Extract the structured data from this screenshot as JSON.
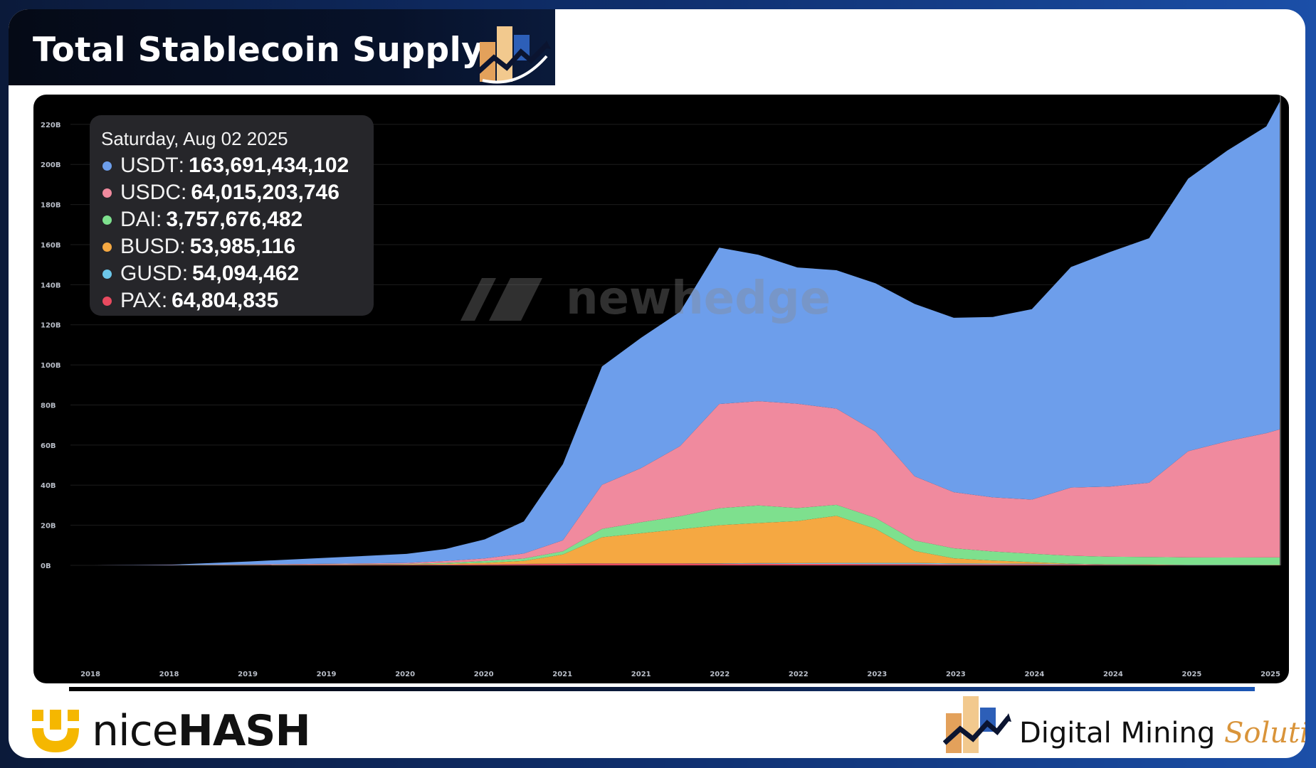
{
  "title": "Total Stablecoin Supply",
  "watermark": "newhedge",
  "tooltip": {
    "date": "Saturday, Aug 02 2025",
    "rows": [
      {
        "name": "USDT",
        "value": "163,691,434,102",
        "color": "#6d9eeb"
      },
      {
        "name": "USDC",
        "value": "64,015,203,746",
        "color": "#f08a9e"
      },
      {
        "name": "DAI",
        "value": "3,757,676,482",
        "color": "#7ee08e"
      },
      {
        "name": "BUSD",
        "value": "53,985,116",
        "color": "#f5a842"
      },
      {
        "name": "GUSD",
        "value": "54,094,462",
        "color": "#6cc7ea"
      },
      {
        "name": "PAX",
        "value": "64,804,835",
        "color": "#e84a5f"
      }
    ]
  },
  "footer": {
    "left_brand_light": "nice",
    "left_brand_bold": "HASH",
    "right_brand_main": "Digital Mining ",
    "right_brand_accent": "Solutions"
  },
  "chart_data": {
    "type": "area",
    "stacked": true,
    "y_ticks": [
      "0B",
      "20B",
      "40B",
      "60B",
      "80B",
      "100B",
      "120B",
      "140B",
      "160B",
      "180B",
      "200B",
      "220B"
    ],
    "ylim": [
      0,
      232
    ],
    "y_unit": "B",
    "x_ticks": [
      "2018",
      "2018",
      "2019",
      "2019",
      "2020",
      "2020",
      "2021",
      "2021",
      "2022",
      "2022",
      "2023",
      "2023",
      "2024",
      "2024",
      "2025",
      "2025"
    ],
    "x": [
      2018.0,
      2018.5,
      2019.0,
      2019.5,
      2020.0,
      2020.25,
      2020.5,
      2020.75,
      2021.0,
      2021.25,
      2021.5,
      2021.75,
      2022.0,
      2022.25,
      2022.5,
      2022.75,
      2023.0,
      2023.25,
      2023.5,
      2023.75,
      2024.0,
      2024.25,
      2024.5,
      2024.75,
      2025.0,
      2025.25,
      2025.5,
      2025.59
    ],
    "series": [
      {
        "name": "PAX",
        "color": "#e84a5f",
        "values": [
          0,
          0.05,
          0.1,
          0.2,
          0.25,
          0.3,
          0.4,
          0.6,
          0.8,
          0.9,
          0.9,
          0.9,
          0.8,
          0.8,
          0.7,
          0.7,
          0.6,
          0.6,
          0.5,
          0.5,
          0.5,
          0.4,
          0.3,
          0.2,
          0.1,
          0.1,
          0.07,
          0.065
        ]
      },
      {
        "name": "GUSD",
        "color": "#6cc7ea",
        "values": [
          0,
          0.01,
          0.02,
          0.05,
          0.05,
          0.05,
          0.05,
          0.1,
          0.1,
          0.1,
          0.1,
          0.1,
          0.2,
          0.3,
          0.4,
          0.5,
          0.6,
          0.6,
          0.5,
          0.4,
          0.3,
          0.2,
          0.1,
          0.1,
          0.06,
          0.06,
          0.055,
          0.054
        ]
      },
      {
        "name": "BUSD",
        "color": "#f5a842",
        "values": [
          0,
          0,
          0.02,
          0.1,
          0.2,
          0.4,
          0.8,
          1.5,
          4.5,
          13,
          15,
          17,
          19,
          20,
          21,
          23.5,
          17,
          6,
          2.5,
          1.5,
          0.8,
          0.2,
          0.1,
          0.08,
          0.06,
          0.05,
          0.054,
          0.054
        ]
      },
      {
        "name": "DAI",
        "color": "#7ee08e",
        "values": [
          0,
          0.05,
          0.1,
          0.15,
          0.2,
          0.5,
          0.9,
          1.2,
          1.6,
          4.2,
          5.5,
          6.5,
          8.5,
          8.8,
          6.5,
          5.5,
          5.5,
          5.2,
          5.0,
          4.5,
          4.2,
          4.0,
          3.8,
          3.8,
          3.7,
          3.7,
          3.76,
          3.76
        ]
      },
      {
        "name": "USDC",
        "color": "#f08a9e",
        "values": [
          0,
          0.05,
          0.2,
          0.3,
          0.5,
          0.9,
          1.3,
          2.5,
          5.5,
          22,
          27,
          35,
          52,
          52,
          52,
          48,
          43,
          32,
          28,
          27,
          27,
          34,
          35,
          37,
          53,
          58,
          62,
          64
        ]
      },
      {
        "name": "USDT",
        "color": "#6d9eeb",
        "values": [
          0,
          0.2,
          1.5,
          3.0,
          4.5,
          6.0,
          9.5,
          16,
          38,
          59,
          65,
          67,
          78,
          73,
          68,
          69,
          74,
          86,
          87,
          90,
          95,
          110,
          117,
          122,
          136,
          145,
          153,
          164
        ]
      }
    ]
  }
}
